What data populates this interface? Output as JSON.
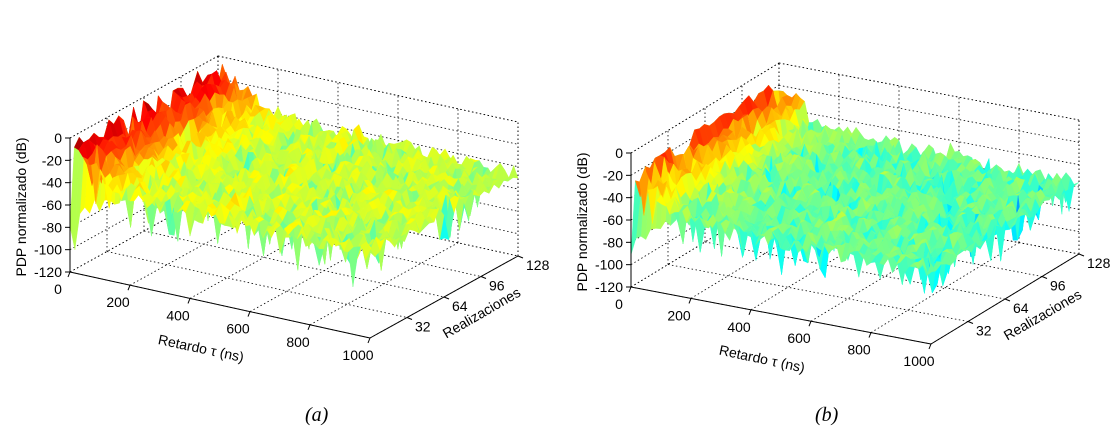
{
  "chart_data": [
    {
      "type": "surface",
      "panel_label": "(a)",
      "xlabel": "Retardo τ (ns)",
      "ylabel": "Realizaciones",
      "zlabel": "PDP normalizado (dB)",
      "x_ticks": [
        0,
        200,
        400,
        600,
        800,
        1000
      ],
      "y_ticks": [
        32,
        64,
        96,
        128
      ],
      "z_ticks": [
        0,
        -20,
        -40,
        -60,
        -80,
        -100,
        -120
      ],
      "xlim": [
        0,
        1000
      ],
      "ylim": [
        0,
        128
      ],
      "zlim": [
        -120,
        0
      ],
      "colormap": "jet",
      "grid": true,
      "peaks": [
        {
          "delay_ns": 10,
          "level_db": -5
        },
        {
          "delay_ns": 45,
          "level_db": -10
        },
        {
          "delay_ns": 480,
          "level_db": -35
        },
        {
          "delay_ns": 990,
          "level_db": -45
        }
      ],
      "noise_floor_db": -75
    },
    {
      "type": "surface",
      "panel_label": "(b)",
      "xlabel": "Retardo τ (ns)",
      "ylabel": "Realizaciones",
      "zlabel": "PDP normalizado (dB)",
      "x_ticks": [
        0,
        200,
        400,
        600,
        800,
        1000
      ],
      "y_ticks": [
        32,
        64,
        96,
        128
      ],
      "z_ticks": [
        0,
        -20,
        -40,
        -60,
        -80,
        -100,
        -120
      ],
      "xlim": [
        0,
        1000
      ],
      "ylim": [
        0,
        128
      ],
      "zlim": [
        -120,
        0
      ],
      "colormap": "jet",
      "grid": true,
      "peaks": [
        {
          "delay_ns": 10,
          "level_db": -15
        },
        {
          "delay_ns": 560,
          "level_db": -45
        }
      ],
      "noise_floor_db": -85
    }
  ]
}
